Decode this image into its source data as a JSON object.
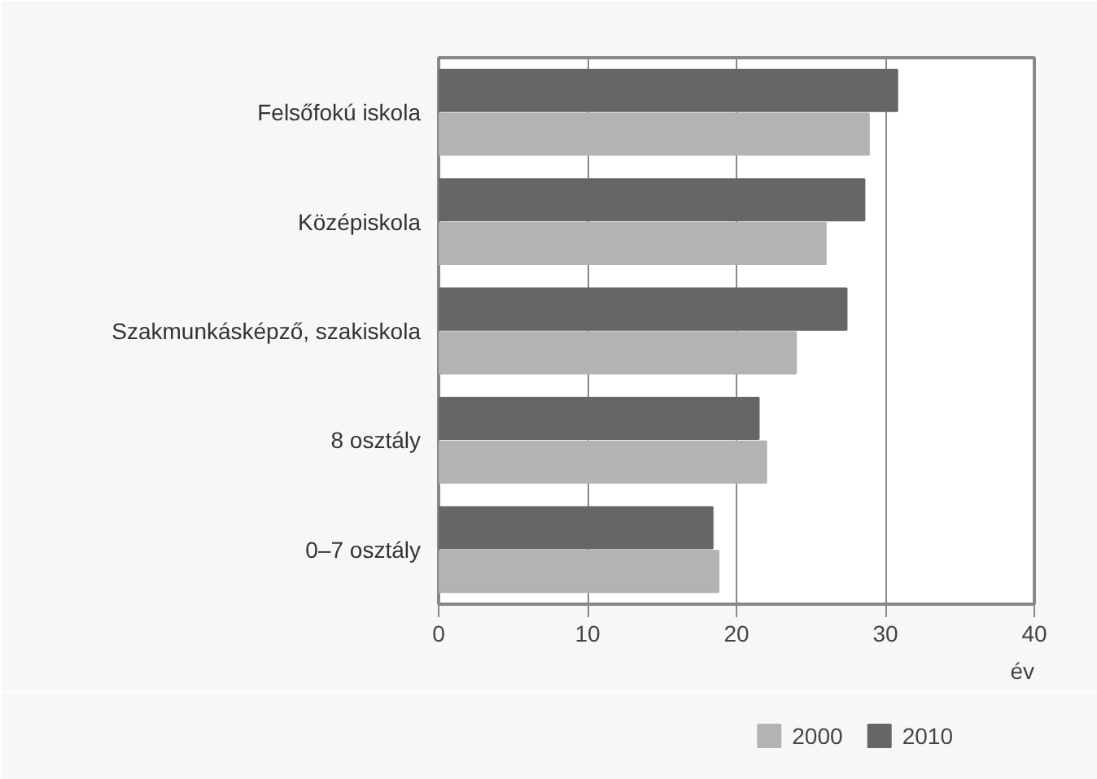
{
  "chart_data": {
    "type": "bar",
    "orientation": "horizontal",
    "xlabel": "év",
    "categories": [
      "Felsőfokú iskola",
      "Középiskola",
      "Szakmunkásképző, szakiskola",
      "8 osztály",
      "0–7 osztály"
    ],
    "series": [
      {
        "name": "2010",
        "color": "#666666",
        "values": [
          30.8,
          28.6,
          27.4,
          21.5,
          18.4
        ]
      },
      {
        "name": "2000",
        "color": "#b3b3b3",
        "values": [
          28.9,
          26.0,
          24.0,
          22.0,
          18.8
        ]
      }
    ],
    "xlim": [
      0,
      40
    ],
    "xticks": [
      0,
      10,
      20,
      30,
      40
    ],
    "grid": "x",
    "legend": "bottom"
  }
}
